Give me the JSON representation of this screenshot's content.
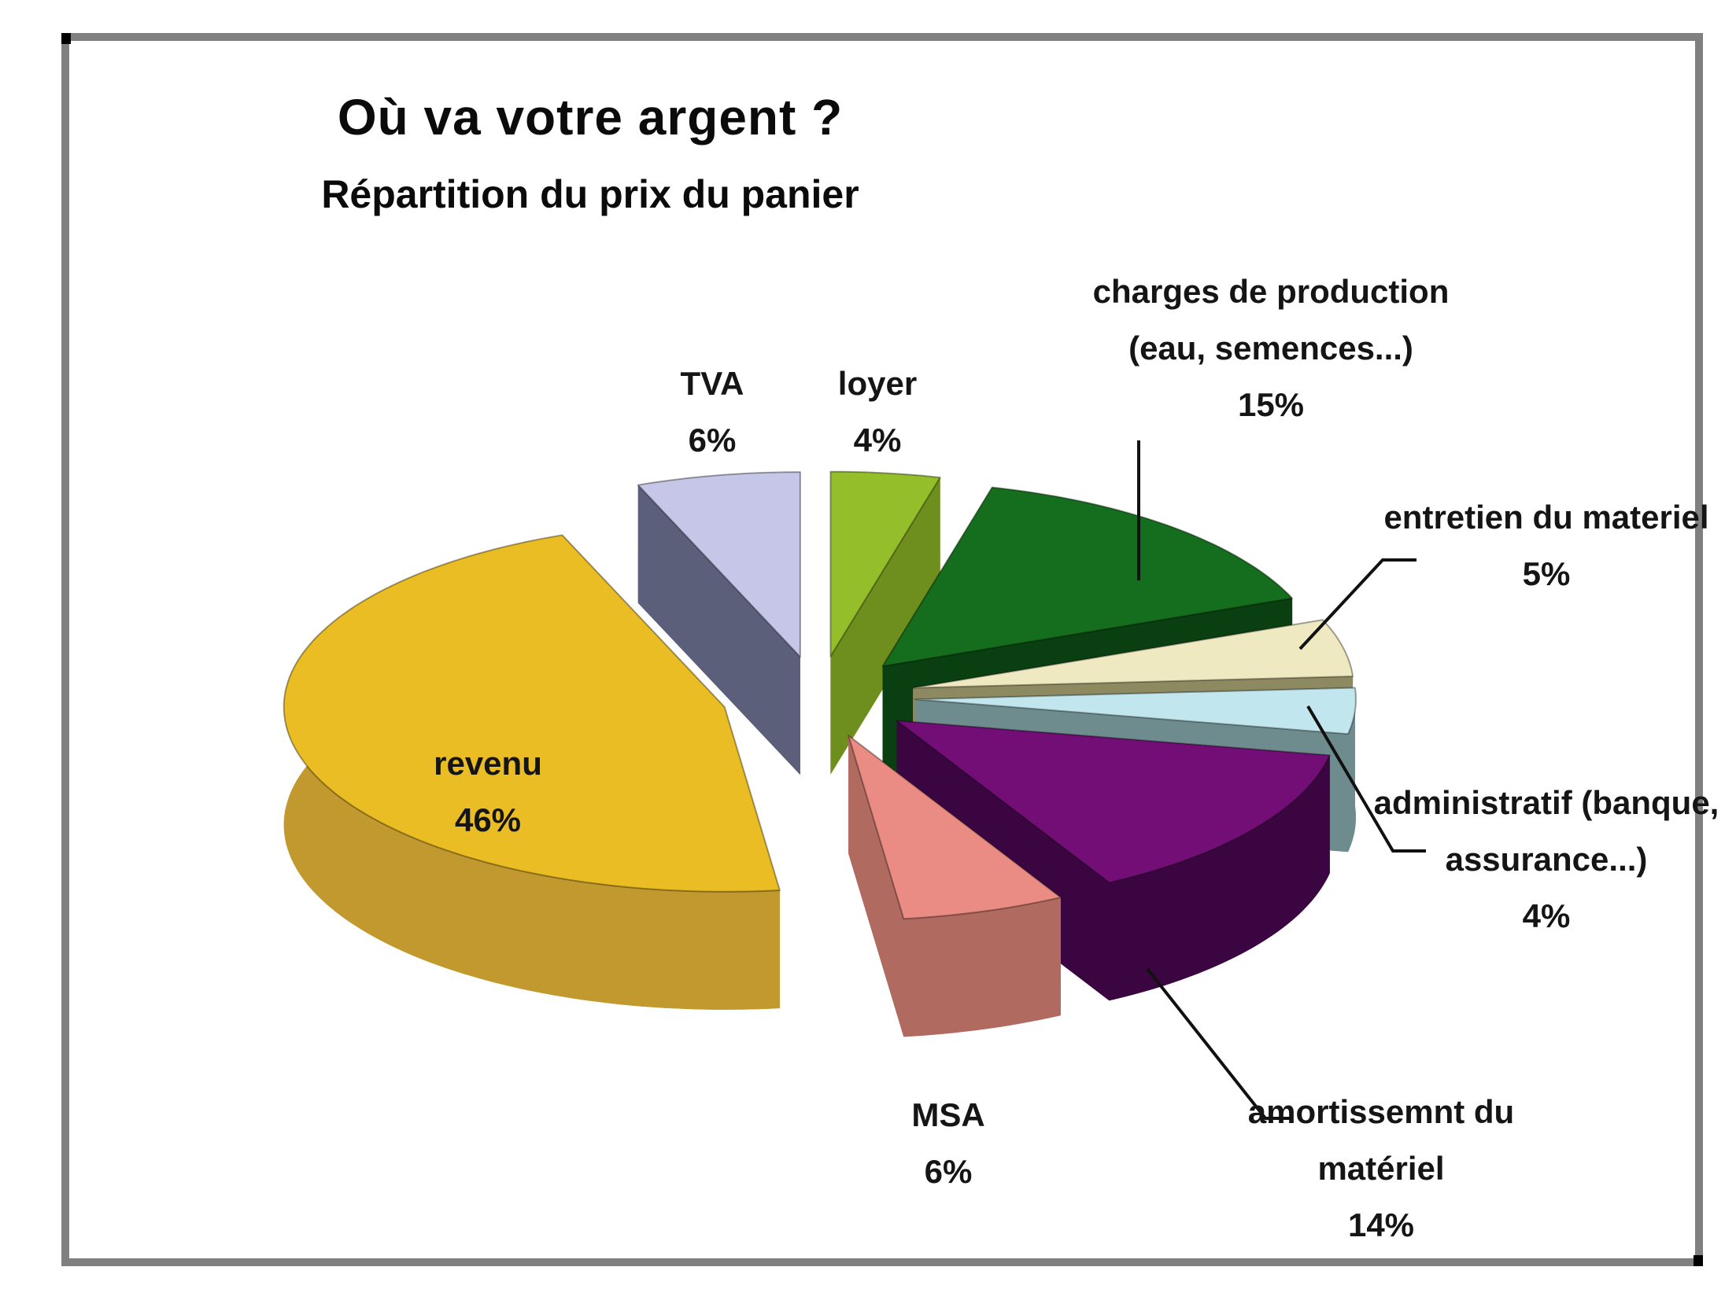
{
  "chart_data": {
    "type": "pie",
    "style": "3d-exploded",
    "title": "Où va votre argent ?",
    "subtitle": "Répartition du prix du panier",
    "unit": "%",
    "start_angle_deg": 0,
    "direction": "clockwise",
    "legend": "none (labels around slices)",
    "slices": [
      {
        "label": "loyer",
        "value": 4,
        "pct_label": "4%",
        "label_lines": [
          "loyer"
        ],
        "color": "#94BE2A",
        "dark": "#6E8F1E"
      },
      {
        "label": "charges de production (eau, semences...)",
        "value": 15,
        "pct_label": "15%",
        "label_lines": [
          "charges de production",
          "(eau, semences...)"
        ],
        "color": "#156E1D",
        "dark": "#0A3F11"
      },
      {
        "label": "entretien du materiel",
        "value": 5,
        "pct_label": "5%",
        "label_lines": [
          "entretien du materiel"
        ],
        "color": "#EFE9C1",
        "dark": "#8D8A62"
      },
      {
        "label": "administratif (banque, assurance...)",
        "value": 4,
        "pct_label": "4%",
        "label_lines": [
          "administratif (banque,",
          "assurance...)"
        ],
        "color": "#C2E6ED",
        "dark": "#6E8C8D"
      },
      {
        "label": "amortissemnt du matériel",
        "value": 14,
        "pct_label": "14%",
        "label_lines": [
          "amortissemnt du",
          "matériel"
        ],
        "color": "#730E77",
        "dark": "#3A0540"
      },
      {
        "label": "MSA",
        "value": 6,
        "pct_label": "6%",
        "label_lines": [
          "MSA"
        ],
        "color": "#EA8C84",
        "dark": "#B16A60"
      },
      {
        "label": "revenu",
        "value": 46,
        "pct_label": "46%",
        "label_lines": [
          "revenu"
        ],
        "color": "#E9BD23",
        "dark": "#C2992F"
      },
      {
        "label": "TVA",
        "value": 6,
        "pct_label": "6%",
        "label_lines": [
          "TVA"
        ],
        "color": "#C6C7E8",
        "dark": "#5C5F7A"
      }
    ],
    "colors": {
      "frame_border": "#808080",
      "leader_line": "#111111",
      "text": "#0b0b0b"
    }
  }
}
